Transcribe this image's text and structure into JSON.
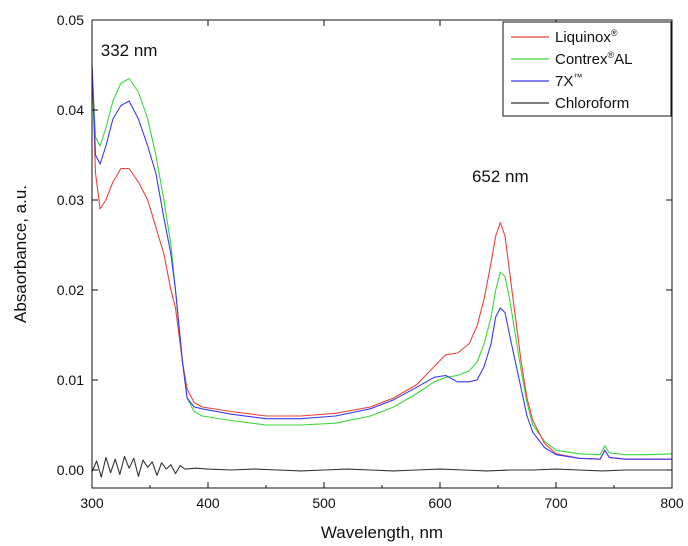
{
  "chart_data": {
    "type": "line",
    "title": "",
    "xlabel": "Wavelength, nm",
    "ylabel": "Absaorbance, a.u.",
    "xlim": [
      300,
      800
    ],
    "ylim": [
      -0.002,
      0.05
    ],
    "x_ticks": [
      "300",
      "400",
      "500",
      "600",
      "700",
      "800"
    ],
    "y_ticks": [
      "0.00",
      "0.01",
      "0.02",
      "0.03",
      "0.04",
      "0.05"
    ],
    "grid": false,
    "legend_position": "top-right",
    "annotations": [
      {
        "text": "332 nm",
        "x": 332,
        "y": 0.046
      },
      {
        "text": "652 nm",
        "x": 652,
        "y": 0.032
      }
    ],
    "series": [
      {
        "name": "Liquinox",
        "name_mark": "®",
        "color": "#e8443a",
        "x": [
          300,
          303,
          307,
          312,
          318,
          325,
          332,
          340,
          348,
          355,
          362,
          368,
          372,
          375,
          378,
          382,
          388,
          395,
          420,
          450,
          480,
          510,
          540,
          560,
          580,
          595,
          605,
          615,
          625,
          632,
          638,
          644,
          648,
          652,
          656,
          660,
          665,
          670,
          675,
          680,
          690,
          700,
          720,
          738,
          742,
          746,
          760,
          780,
          800
        ],
        "y": [
          0.045,
          0.033,
          0.029,
          0.03,
          0.032,
          0.0335,
          0.0335,
          0.032,
          0.03,
          0.027,
          0.024,
          0.02,
          0.018,
          0.015,
          0.012,
          0.009,
          0.0075,
          0.007,
          0.0065,
          0.006,
          0.006,
          0.0063,
          0.007,
          0.008,
          0.0095,
          0.0115,
          0.0128,
          0.013,
          0.014,
          0.016,
          0.019,
          0.023,
          0.026,
          0.0275,
          0.026,
          0.022,
          0.017,
          0.012,
          0.008,
          0.0055,
          0.003,
          0.0018,
          0.0013,
          0.0012,
          0.0022,
          0.0014,
          0.0012,
          0.0012,
          0.0012
        ]
      },
      {
        "name": "Contrex",
        "name_mark": "®",
        "name_suffix": "AL",
        "color": "#3cd63c",
        "x": [
          300,
          303,
          307,
          312,
          318,
          325,
          332,
          340,
          348,
          355,
          362,
          368,
          372,
          375,
          378,
          382,
          388,
          395,
          420,
          450,
          480,
          510,
          540,
          560,
          580,
          595,
          605,
          615,
          625,
          632,
          638,
          644,
          648,
          652,
          656,
          660,
          665,
          670,
          675,
          680,
          690,
          700,
          720,
          738,
          742,
          746,
          760,
          780,
          800
        ],
        "y": [
          0.045,
          0.037,
          0.036,
          0.038,
          0.041,
          0.043,
          0.0435,
          0.042,
          0.039,
          0.035,
          0.03,
          0.025,
          0.02,
          0.016,
          0.012,
          0.008,
          0.0065,
          0.006,
          0.0055,
          0.005,
          0.005,
          0.0052,
          0.006,
          0.007,
          0.0085,
          0.0098,
          0.0103,
          0.0105,
          0.011,
          0.012,
          0.014,
          0.017,
          0.02,
          0.022,
          0.0215,
          0.019,
          0.015,
          0.011,
          0.0075,
          0.005,
          0.0032,
          0.0022,
          0.0018,
          0.0017,
          0.0027,
          0.0019,
          0.0017,
          0.0017,
          0.0018
        ]
      },
      {
        "name": "7X",
        "name_mark": "™",
        "color": "#3a3af0",
        "x": [
          300,
          303,
          307,
          312,
          318,
          325,
          332,
          340,
          348,
          355,
          362,
          368,
          372,
          375,
          378,
          382,
          388,
          395,
          420,
          450,
          480,
          510,
          540,
          560,
          580,
          595,
          605,
          615,
          625,
          632,
          638,
          644,
          648,
          652,
          656,
          660,
          665,
          670,
          675,
          680,
          690,
          700,
          720,
          738,
          742,
          746,
          760,
          780,
          800
        ],
        "y": [
          0.045,
          0.035,
          0.034,
          0.036,
          0.039,
          0.0405,
          0.041,
          0.039,
          0.036,
          0.033,
          0.028,
          0.024,
          0.02,
          0.016,
          0.012,
          0.008,
          0.007,
          0.0068,
          0.0062,
          0.0057,
          0.0057,
          0.006,
          0.0068,
          0.0078,
          0.0092,
          0.0103,
          0.0105,
          0.0098,
          0.0098,
          0.01,
          0.0115,
          0.014,
          0.017,
          0.018,
          0.0175,
          0.015,
          0.012,
          0.009,
          0.006,
          0.0042,
          0.0025,
          0.0017,
          0.0013,
          0.0012,
          0.0022,
          0.0014,
          0.0012,
          0.0012,
          0.0012
        ]
      },
      {
        "name": "Chloroform",
        "name_mark": "",
        "color": "#333333",
        "x": [
          300,
          304,
          308,
          312,
          316,
          320,
          324,
          328,
          332,
          336,
          340,
          344,
          348,
          352,
          356,
          360,
          364,
          368,
          372,
          376,
          380,
          390,
          400,
          420,
          440,
          460,
          480,
          500,
          520,
          540,
          560,
          580,
          600,
          620,
          640,
          660,
          680,
          700,
          720,
          740,
          760,
          780,
          800
        ],
        "y": [
          -0.0002,
          0.001,
          -0.0008,
          0.0014,
          -0.0003,
          0.0012,
          -0.0005,
          0.0015,
          0.0002,
          0.0013,
          -0.0007,
          0.0011,
          0.0003,
          0.0009,
          -0.0006,
          0.0008,
          0.0001,
          0.0006,
          -0.0004,
          0.0005,
          0.0001,
          0.0002,
          0.0001,
          0.0,
          0.0001,
          0.0,
          -0.0001,
          0.0,
          0.0001,
          0.0,
          -0.0001,
          0.0,
          0.0001,
          0.0,
          -0.0001,
          0.0,
          0.0,
          0.0001,
          0.0,
          -0.0001,
          0.0,
          0.0,
          0.0
        ]
      }
    ]
  }
}
